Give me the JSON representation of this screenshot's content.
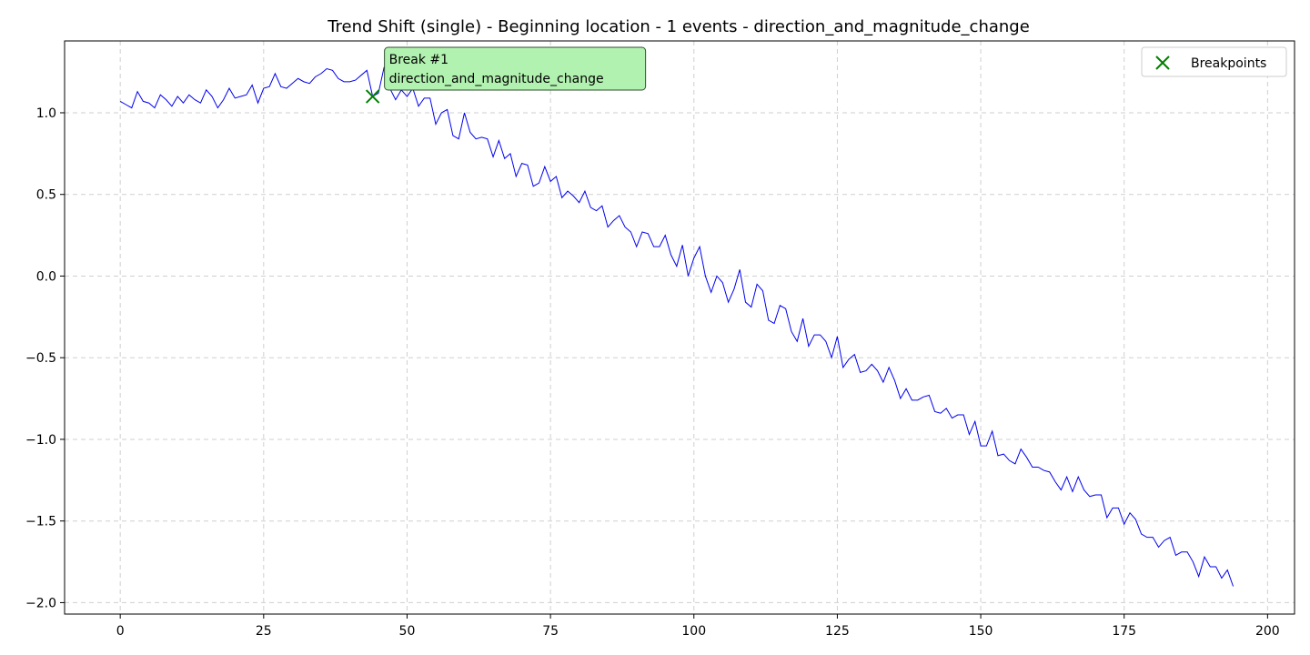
{
  "chart_data": {
    "type": "line",
    "title": "Trend Shift (single) - Beginning location - 1 events - direction_and_magnitude_change",
    "xlabel": "",
    "ylabel": "",
    "xlim": [
      -9.7,
      204.7
    ],
    "ylim": [
      -2.07,
      1.44
    ],
    "xticks": [
      0,
      25,
      50,
      75,
      100,
      125,
      150,
      175,
      200
    ],
    "yticks": [
      1.0,
      0.5,
      0.0,
      -0.5,
      -1.0,
      -1.5,
      -2.0
    ],
    "xtick_labels": [
      "0",
      "25",
      "50",
      "75",
      "100",
      "125",
      "150",
      "175",
      "200"
    ],
    "ytick_labels": [
      "1.0",
      "0.5",
      "0.0",
      "−0.5",
      "−1.0",
      "−1.5",
      "−2.0"
    ],
    "grid": true,
    "legend_position": "top-right",
    "series": [
      {
        "color": "#0000ee",
        "values": [
          1.07,
          1.05,
          1.03,
          1.13,
          1.07,
          1.06,
          1.03,
          1.11,
          1.08,
          1.04,
          1.1,
          1.06,
          1.11,
          1.08,
          1.06,
          1.14,
          1.1,
          1.03,
          1.08,
          1.15,
          1.09,
          1.1,
          1.11,
          1.17,
          1.06,
          1.15,
          1.16,
          1.24,
          1.16,
          1.15,
          1.18,
          1.21,
          1.19,
          1.18,
          1.22,
          1.24,
          1.27,
          1.26,
          1.21,
          1.19,
          1.19,
          1.2,
          1.23,
          1.26,
          1.1,
          1.12,
          1.28,
          1.15,
          1.08,
          1.14,
          1.1,
          1.15,
          1.04,
          1.09,
          1.09,
          0.93,
          1.0,
          1.02,
          0.86,
          0.84,
          1.0,
          0.88,
          0.84,
          0.85,
          0.84,
          0.73,
          0.83,
          0.72,
          0.75,
          0.61,
          0.69,
          0.68,
          0.55,
          0.57,
          0.67,
          0.58,
          0.61,
          0.48,
          0.52,
          0.49,
          0.45,
          0.52,
          0.42,
          0.4,
          0.43,
          0.3,
          0.34,
          0.37,
          0.3,
          0.27,
          0.18,
          0.27,
          0.26,
          0.18,
          0.18,
          0.25,
          0.13,
          0.06,
          0.19,
          0.0,
          0.11,
          0.18,
          0.0,
          -0.1,
          0.0,
          -0.04,
          -0.16,
          -0.08,
          0.04,
          -0.16,
          -0.19,
          -0.05,
          -0.09,
          -0.27,
          -0.29,
          -0.18,
          -0.2,
          -0.34,
          -0.4,
          -0.26,
          -0.43,
          -0.36,
          -0.36,
          -0.4,
          -0.5,
          -0.37,
          -0.56,
          -0.51,
          -0.48,
          -0.59,
          -0.58,
          -0.54,
          -0.58,
          -0.65,
          -0.56,
          -0.64,
          -0.75,
          -0.69,
          -0.76,
          -0.76,
          -0.74,
          -0.73,
          -0.83,
          -0.84,
          -0.81,
          -0.87,
          -0.85,
          -0.85,
          -0.97,
          -0.89,
          -1.04,
          -1.04,
          -0.95,
          -1.1,
          -1.09,
          -1.13,
          -1.15,
          -1.06,
          -1.11,
          -1.17,
          -1.17,
          -1.19,
          -1.2,
          -1.26,
          -1.31,
          -1.23,
          -1.32,
          -1.23,
          -1.31,
          -1.35,
          -1.34,
          -1.34,
          -1.48,
          -1.42,
          -1.42,
          -1.52,
          -1.45,
          -1.49,
          -1.58,
          -1.6,
          -1.6,
          -1.66,
          -1.62,
          -1.6,
          -1.71,
          -1.69,
          -1.69,
          -1.75,
          -1.84,
          -1.72,
          -1.78,
          -1.78,
          -1.85,
          -1.8,
          -1.9
        ]
      }
    ],
    "breakpoints": [
      {
        "x": 44,
        "y": 1.1,
        "marker": "x",
        "color": "#008000",
        "label_line1": "Break #1",
        "label_line2": "direction_and_magnitude_change",
        "label_bg": "#b2f2b0"
      }
    ],
    "legend": [
      {
        "label": "Breakpoints",
        "marker": "x",
        "color": "#008000"
      }
    ]
  }
}
